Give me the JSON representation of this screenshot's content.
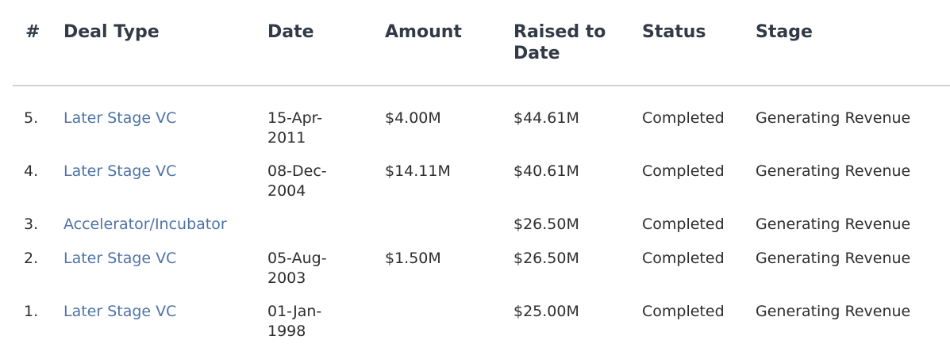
{
  "table": {
    "headers": {
      "num": "#",
      "deal_type": "Deal Type",
      "date": "Date",
      "amount": "Amount",
      "raised_to_date_line1": "Raised to",
      "raised_to_date_line2": "Date",
      "status": "Status",
      "stage": "Stage"
    },
    "rows": [
      {
        "num": "5.",
        "deal_type": "Later Stage VC",
        "date_line1": "15-Apr-",
        "date_line2": "2011",
        "amount": "$4.00M",
        "raised_to_date": "$44.61M",
        "status": "Completed",
        "stage": "Generating Revenue"
      },
      {
        "num": "4.",
        "deal_type": "Later Stage VC",
        "date_line1": "08-Dec-",
        "date_line2": "2004",
        "amount": "$14.11M",
        "raised_to_date": "$40.61M",
        "status": "Completed",
        "stage": "Generating Revenue"
      },
      {
        "num": "3.",
        "deal_type": "Accelerator/Incubator",
        "date_line1": "",
        "date_line2": "",
        "amount": "",
        "raised_to_date": "$26.50M",
        "status": "Completed",
        "stage": "Generating Revenue"
      },
      {
        "num": "2.",
        "deal_type": "Later Stage VC",
        "date_line1": "05-Aug-",
        "date_line2": "2003",
        "amount": "$1.50M",
        "raised_to_date": "$26.50M",
        "status": "Completed",
        "stage": "Generating Revenue"
      },
      {
        "num": "1.",
        "deal_type": "Later Stage VC",
        "date_line1": "01-Jan-",
        "date_line2": "1998",
        "amount": "",
        "raised_to_date": "$25.00M",
        "status": "Completed",
        "stage": "Generating Revenue"
      }
    ]
  },
  "colors": {
    "header_text": "#313a46",
    "body_text": "#2e2e2e",
    "link": "#4e74a8",
    "divider": "#d2d2d2"
  }
}
